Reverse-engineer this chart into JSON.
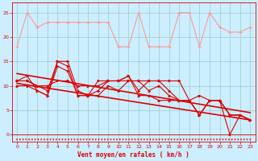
{
  "bg_color": "#cceeff",
  "grid_color": "#99cccc",
  "xlabel": "Vent moyen/en rafales ( km/h )",
  "x_ticks": [
    0,
    1,
    2,
    3,
    4,
    5,
    6,
    7,
    8,
    9,
    10,
    11,
    12,
    13,
    14,
    15,
    16,
    17,
    18,
    19,
    20,
    21,
    22,
    23
  ],
  "ylim": [
    -1.5,
    27
  ],
  "xlim": [
    -0.5,
    23.5
  ],
  "y_ticks": [
    0,
    5,
    10,
    15,
    20,
    25
  ],
  "light_red": "#ff9999",
  "dark_red": "#dd0000",
  "line_light_y": [
    18,
    25,
    22,
    23,
    23,
    23,
    23,
    23,
    23,
    23,
    18,
    18,
    25,
    18,
    18,
    18,
    25,
    25,
    18,
    25,
    22,
    21,
    21,
    22
  ],
  "line_dark1_y": [
    11,
    11,
    10,
    9,
    15,
    15,
    9,
    8,
    9,
    11,
    11,
    12,
    9,
    11,
    11,
    9,
    7,
    7,
    8,
    7,
    7,
    4,
    4,
    3
  ],
  "line_dark2_y": [
    10,
    10,
    9,
    8,
    14,
    13,
    8,
    8,
    8,
    10,
    9,
    11,
    11,
    9,
    10,
    8,
    7,
    7,
    4,
    7,
    7,
    4,
    4,
    3
  ],
  "line_dark3_y": [
    11,
    12,
    9,
    8,
    15,
    14,
    8,
    8,
    11,
    11,
    11,
    12,
    8,
    8,
    7,
    7,
    7,
    7,
    4,
    7,
    7,
    0,
    4,
    3
  ],
  "line_dark4_y": [
    11,
    11,
    10,
    10,
    11,
    11,
    10,
    10,
    10,
    11,
    11,
    11,
    11,
    11,
    11,
    11,
    11,
    7,
    4,
    7,
    7,
    4,
    4,
    3
  ],
  "trend1_x": [
    0,
    23
  ],
  "trend1_y": [
    12.5,
    4.5
  ],
  "trend2_x": [
    0,
    23
  ],
  "trend2_y": [
    10.5,
    3.0
  ]
}
